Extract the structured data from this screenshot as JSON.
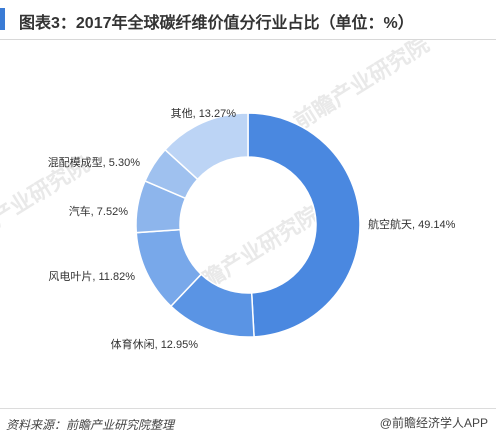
{
  "header": {
    "title": "图表3：2017年全球碳纤维价值分行业占比（单位：%）",
    "accent_color": "#3a7bd5"
  },
  "chart_data": {
    "type": "pie",
    "variant": "donut",
    "title": "图表3：2017年全球碳纤维价值分行业占比（单位：%）",
    "unit": "%",
    "slices": [
      {
        "label": "航空航天",
        "value": 49.14,
        "display": "航空航天, 49.14%",
        "color": "#4a88e0"
      },
      {
        "label": "体育休闲",
        "value": 12.95,
        "display": "体育休闲, 12.95%",
        "color": "#5a94e4"
      },
      {
        "label": "风电叶片",
        "value": 11.82,
        "display": "风电叶片, 11.82%",
        "color": "#78a8ea"
      },
      {
        "label": "汽车",
        "value": 7.52,
        "display": "汽车, 7.52%",
        "color": "#8db5ec"
      },
      {
        "label": "混配模成型",
        "value": 5.3,
        "display": "混配模成型, 5.30%",
        "color": "#9fc1ef"
      },
      {
        "label": "其他",
        "value": 13.27,
        "display": "其他, 13.27%",
        "color": "#bcd4f5"
      }
    ],
    "start_angle_deg": 0,
    "direction": "clockwise",
    "legend": "none"
  },
  "footer": {
    "source": "资料来源：前瞻产业研究院整理",
    "brand": "@前瞻经济学人APP"
  },
  "watermark": {
    "text": "前瞻产业研究院"
  }
}
